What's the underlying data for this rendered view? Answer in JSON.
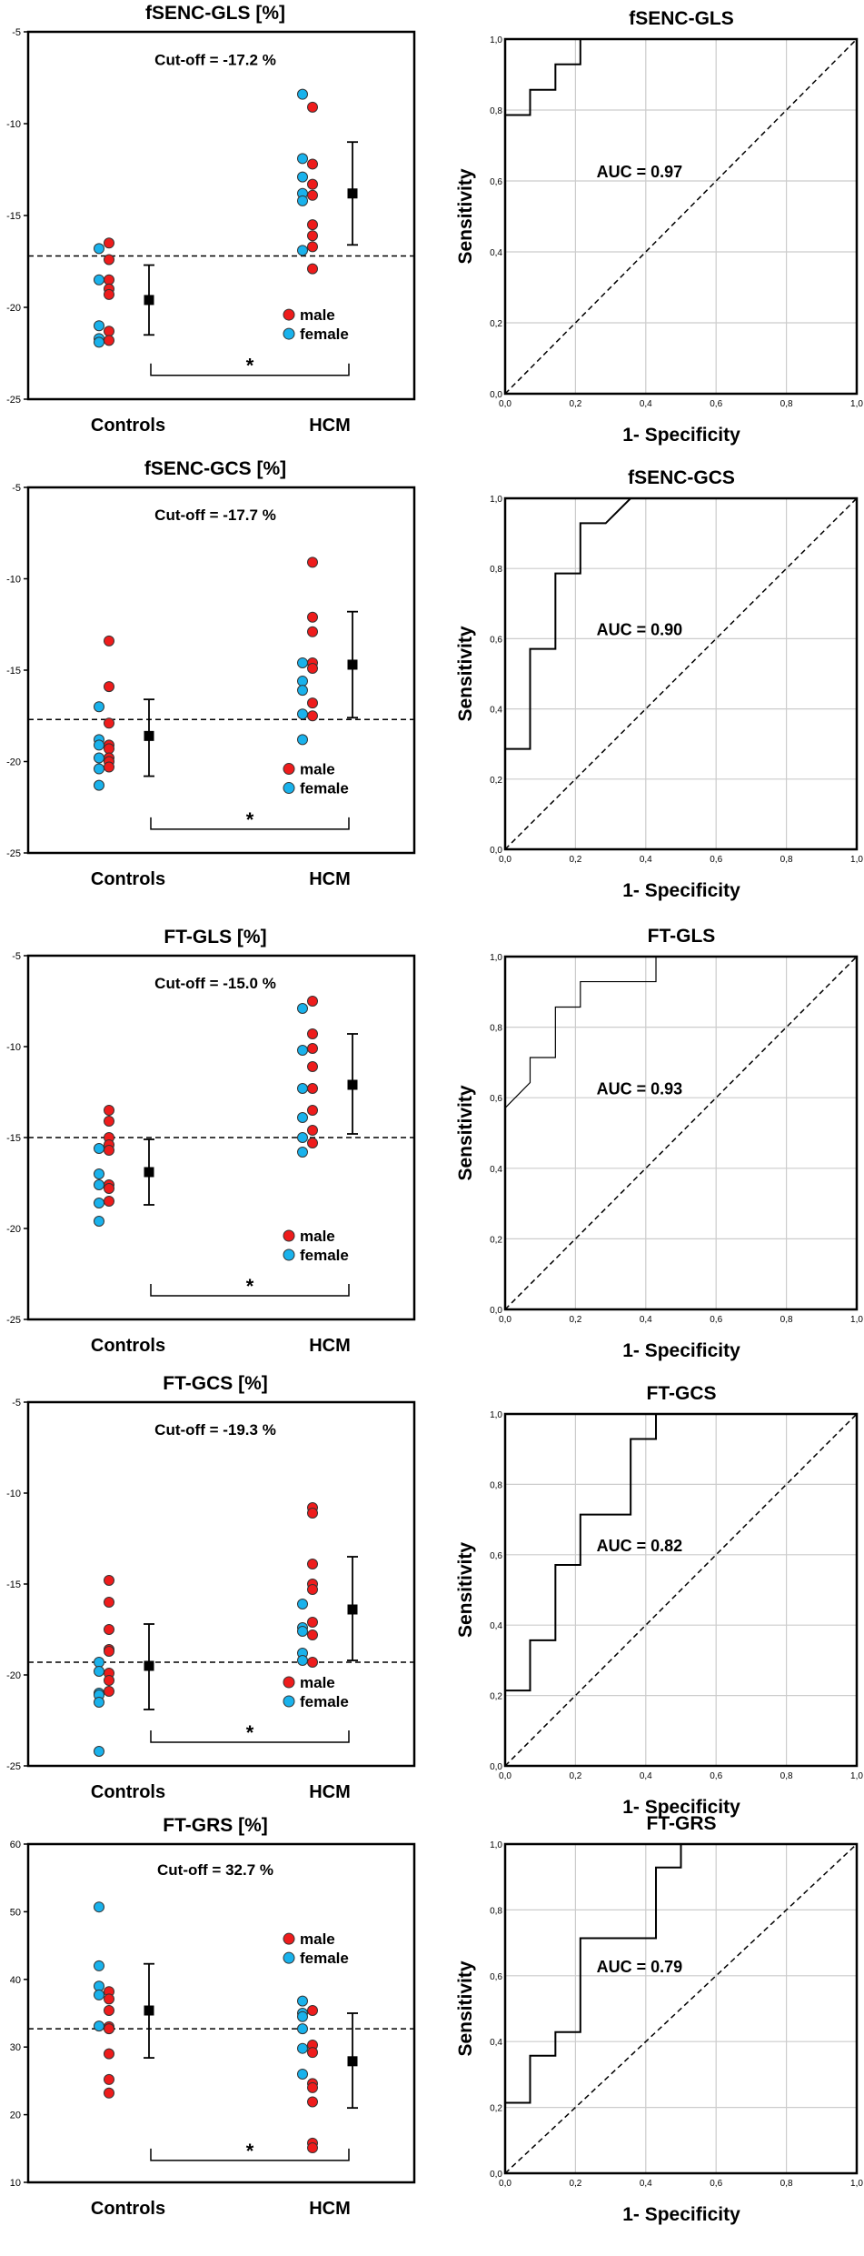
{
  "colors": {
    "male": "#ee1c1c",
    "female": "#19b2ec",
    "mean": "#000000",
    "grid": "#cccccc"
  },
  "chart_data": [
    {
      "type": "scatter",
      "title": "fSENC-GLS [%]",
      "cutoff_label": "Cut-off = -17.2 %",
      "cutoff": -17.2,
      "ylim": [
        -25,
        -5
      ],
      "yticks": [
        "-5",
        "-10",
        "-15",
        "-20",
        "-25"
      ],
      "ytick_values": [
        -5,
        -10,
        -15,
        -20,
        -25
      ],
      "categories": [
        "Controls",
        "HCM"
      ],
      "legend": {
        "items": [
          "male",
          "female"
        ],
        "placement": "lower-right"
      },
      "significance": "*",
      "series": [
        {
          "group": "Controls",
          "sex": "female",
          "values": [
            -16.8,
            -18.5,
            -21.0,
            -21.7,
            -21.9
          ]
        },
        {
          "group": "Controls",
          "sex": "male",
          "values": [
            -16.5,
            -17.4,
            -18.5,
            -19.0,
            -19.3,
            -21.3,
            -21.8
          ]
        },
        {
          "group": "HCM",
          "sex": "female",
          "values": [
            -8.4,
            -11.9,
            -12.9,
            -13.8,
            -14.2,
            -16.9
          ]
        },
        {
          "group": "HCM",
          "sex": "male",
          "values": [
            -9.1,
            -12.2,
            -13.3,
            -13.9,
            -15.5,
            -16.1,
            -16.7,
            -17.9
          ]
        }
      ],
      "mean_sd": [
        {
          "group": "Controls",
          "mean": -19.6,
          "upper": -17.7,
          "lower": -21.5
        },
        {
          "group": "HCM",
          "mean": -13.8,
          "upper": -11.0,
          "lower": -16.6
        }
      ]
    },
    {
      "type": "line",
      "title": "fSENC-GLS",
      "xlabel": "1- Specificity",
      "ylabel": "Sensitivity",
      "auc_label": "AUC = 0.97",
      "xlim": [
        0,
        1
      ],
      "ylim": [
        0,
        1
      ],
      "ticks": [
        "0,0",
        "0,2",
        "0,4",
        "0,6",
        "0,8",
        "1,0"
      ],
      "grid": true,
      "roc": [
        [
          0,
          0
        ],
        [
          0,
          0.786
        ],
        [
          0.071,
          0.786
        ],
        [
          0.071,
          0.857
        ],
        [
          0.143,
          0.857
        ],
        [
          0.143,
          0.929
        ],
        [
          0.214,
          0.929
        ],
        [
          0.214,
          1
        ],
        [
          1,
          1
        ]
      ],
      "reference": [
        [
          0,
          0
        ],
        [
          1,
          1
        ]
      ]
    },
    {
      "type": "scatter",
      "title": "fSENC-GCS [%]",
      "cutoff_label": "Cut-off = -17.7 %",
      "cutoff": -17.7,
      "ylim": [
        -25,
        -5
      ],
      "yticks": [
        "-5",
        "-10",
        "-15",
        "-20",
        "-25"
      ],
      "ytick_values": [
        -5,
        -10,
        -15,
        -20,
        -25
      ],
      "categories": [
        "Controls",
        "HCM"
      ],
      "legend": {
        "items": [
          "male",
          "female"
        ],
        "placement": "lower-right"
      },
      "significance": "*",
      "series": [
        {
          "group": "Controls",
          "sex": "female",
          "values": [
            -17.0,
            -18.8,
            -19.1,
            -19.8,
            -20.4,
            -21.3
          ]
        },
        {
          "group": "Controls",
          "sex": "male",
          "values": [
            -13.4,
            -15.9,
            -17.9,
            -19.1,
            -19.3,
            -19.8,
            -20.0,
            -20.3
          ]
        },
        {
          "group": "HCM",
          "sex": "female",
          "values": [
            -14.6,
            -15.6,
            -16.1,
            -17.4,
            -18.8
          ]
        },
        {
          "group": "HCM",
          "sex": "male",
          "values": [
            -9.1,
            -12.1,
            -12.9,
            -14.6,
            -14.9,
            -16.8,
            -17.5
          ]
        }
      ],
      "mean_sd": [
        {
          "group": "Controls",
          "mean": -18.6,
          "upper": -16.6,
          "lower": -20.8
        },
        {
          "group": "HCM",
          "mean": -14.7,
          "upper": -11.8,
          "lower": -17.6
        }
      ]
    },
    {
      "type": "line",
      "title": "fSENC-GCS",
      "xlabel": "1- Specificity",
      "ylabel": "Sensitivity",
      "auc_label": "AUC = 0.90",
      "xlim": [
        0,
        1
      ],
      "ylim": [
        0,
        1
      ],
      "ticks": [
        "0,0",
        "0,2",
        "0,4",
        "0,6",
        "0,8",
        "1,0"
      ],
      "grid": true,
      "roc": [
        [
          0,
          0
        ],
        [
          0,
          0.286
        ],
        [
          0.071,
          0.286
        ],
        [
          0.071,
          0.571
        ],
        [
          0.143,
          0.571
        ],
        [
          0.143,
          0.786
        ],
        [
          0.214,
          0.786
        ],
        [
          0.214,
          0.929
        ],
        [
          0.286,
          0.929
        ],
        [
          0.357,
          1
        ],
        [
          1,
          1
        ]
      ],
      "reference": [
        [
          0,
          0
        ],
        [
          1,
          1
        ]
      ]
    },
    {
      "type": "scatter",
      "title": "FT-GLS [%]",
      "cutoff_label": "Cut-off = -15.0 %",
      "cutoff": -15.0,
      "ylim": [
        -25,
        -5
      ],
      "yticks": [
        "-5",
        "-10",
        "-15",
        "-20",
        "-25"
      ],
      "ytick_values": [
        -5,
        -10,
        -15,
        -20,
        -25
      ],
      "categories": [
        "Controls",
        "HCM"
      ],
      "legend": {
        "items": [
          "male",
          "female"
        ],
        "placement": "lower-right"
      },
      "significance": "*",
      "series": [
        {
          "group": "Controls",
          "sex": "female",
          "values": [
            -15.6,
            -17.0,
            -17.6,
            -18.6,
            -19.6
          ]
        },
        {
          "group": "Controls",
          "sex": "male",
          "values": [
            -13.5,
            -14.1,
            -15.0,
            -15.4,
            -15.7,
            -17.6,
            -17.8,
            -18.5
          ]
        },
        {
          "group": "HCM",
          "sex": "female",
          "values": [
            -7.9,
            -10.2,
            -12.3,
            -13.9,
            -15.0,
            -15.8
          ]
        },
        {
          "group": "HCM",
          "sex": "male",
          "values": [
            -7.5,
            -9.3,
            -10.1,
            -11.1,
            -12.3,
            -13.5,
            -14.6,
            -15.3
          ]
        }
      ],
      "mean_sd": [
        {
          "group": "Controls",
          "mean": -16.9,
          "upper": -15.1,
          "lower": -18.7
        },
        {
          "group": "HCM",
          "mean": -12.1,
          "upper": -9.3,
          "lower": -14.8
        }
      ]
    },
    {
      "type": "line",
      "title": "FT-GLS",
      "xlabel": "1- Specificity",
      "ylabel": "Sensitivity",
      "auc_label": "AUC = 0.93",
      "xlim": [
        0,
        1
      ],
      "ylim": [
        0,
        1
      ],
      "ticks": [
        "0,0",
        "0,2",
        "0,4",
        "0,6",
        "0,8",
        "1,0"
      ],
      "grid": true,
      "roc": [
        [
          0,
          0.571
        ],
        [
          0.071,
          0.643
        ],
        [
          0.071,
          0.714
        ],
        [
          0.143,
          0.714
        ],
        [
          0.143,
          0.857
        ],
        [
          0.214,
          0.857
        ],
        [
          0.214,
          0.929
        ],
        [
          0.429,
          0.929
        ],
        [
          0.429,
          1
        ],
        [
          1,
          1
        ]
      ],
      "reference": [
        [
          0,
          0
        ],
        [
          1,
          1
        ]
      ]
    },
    {
      "type": "scatter",
      "title": "FT-GCS [%]",
      "cutoff_label": "Cut-off = -19.3 %",
      "cutoff": -19.3,
      "ylim": [
        -25,
        -5
      ],
      "yticks": [
        "-5",
        "-10",
        "-15",
        "-20",
        "-25"
      ],
      "ytick_values": [
        -5,
        -10,
        -15,
        -20,
        -25
      ],
      "categories": [
        "Controls",
        "HCM"
      ],
      "legend": {
        "items": [
          "male",
          "female"
        ],
        "placement": "lower-right"
      },
      "significance": "*",
      "series": [
        {
          "group": "Controls",
          "sex": "female",
          "values": [
            -19.3,
            -19.8,
            -21.0,
            -21.1,
            -21.5,
            -24.2
          ]
        },
        {
          "group": "Controls",
          "sex": "male",
          "values": [
            -14.8,
            -16.0,
            -17.5,
            -18.6,
            -18.7,
            -19.9,
            -20.3,
            -20.9
          ]
        },
        {
          "group": "HCM",
          "sex": "female",
          "values": [
            -16.1,
            -17.4,
            -17.6,
            -18.8,
            -19.2
          ]
        },
        {
          "group": "HCM",
          "sex": "male",
          "values": [
            -10.8,
            -11.1,
            -13.9,
            -15.0,
            -15.3,
            -17.1,
            -17.8,
            -19.3
          ]
        }
      ],
      "mean_sd": [
        {
          "group": "Controls",
          "mean": -19.5,
          "upper": -17.2,
          "lower": -21.9
        },
        {
          "group": "HCM",
          "mean": -16.4,
          "upper": -13.5,
          "lower": -19.2
        }
      ]
    },
    {
      "type": "line",
      "title": "FT-GCS",
      "xlabel": "1- Specificity",
      "ylabel": "Sensitivity",
      "auc_label": "AUC = 0.82",
      "xlim": [
        0,
        1
      ],
      "ylim": [
        0,
        1
      ],
      "ticks": [
        "0,0",
        "0,2",
        "0,4",
        "0,6",
        "0,8",
        "1,0"
      ],
      "grid": true,
      "roc": [
        [
          0,
          0
        ],
        [
          0,
          0.214
        ],
        [
          0.071,
          0.214
        ],
        [
          0.071,
          0.357
        ],
        [
          0.143,
          0.357
        ],
        [
          0.143,
          0.571
        ],
        [
          0.214,
          0.571
        ],
        [
          0.214,
          0.714
        ],
        [
          0.357,
          0.714
        ],
        [
          0.357,
          0.929
        ],
        [
          0.429,
          0.929
        ],
        [
          0.429,
          1
        ],
        [
          1,
          1
        ]
      ],
      "reference": [
        [
          0,
          0
        ],
        [
          1,
          1
        ]
      ]
    },
    {
      "type": "scatter",
      "title": "FT-GRS [%]",
      "cutoff_label": "Cut-off = 32.7 %",
      "cutoff": 32.7,
      "ylim": [
        10,
        60
      ],
      "yticks": [
        "60",
        "50",
        "40",
        "30",
        "20",
        "10"
      ],
      "ytick_values": [
        60,
        50,
        40,
        30,
        20,
        10
      ],
      "categories": [
        "Controls",
        "HCM"
      ],
      "legend": {
        "items": [
          "male",
          "female"
        ],
        "placement": "upper-right"
      },
      "significance": "*",
      "series": [
        {
          "group": "Controls",
          "sex": "female",
          "values": [
            50.7,
            42.0,
            39.0,
            37.7,
            33.1
          ]
        },
        {
          "group": "Controls",
          "sex": "male",
          "values": [
            38.2,
            37.1,
            35.4,
            33.0,
            32.7,
            29.0,
            25.2,
            23.2
          ]
        },
        {
          "group": "HCM",
          "sex": "female",
          "values": [
            36.8,
            35.0,
            34.5,
            32.7,
            29.8,
            26.0
          ]
        },
        {
          "group": "HCM",
          "sex": "male",
          "values": [
            35.4,
            30.3,
            29.2,
            24.6,
            24.0,
            21.9,
            15.8,
            15.1
          ]
        }
      ],
      "mean_sd": [
        {
          "group": "Controls",
          "mean": 35.4,
          "upper": 42.3,
          "lower": 28.4
        },
        {
          "group": "HCM",
          "mean": 27.9,
          "upper": 35.0,
          "lower": 21.0
        }
      ]
    },
    {
      "type": "line",
      "title": "FT-GRS",
      "xlabel": "1- Specificity",
      "ylabel": "Sensitivity",
      "auc_label": "AUC = 0.79",
      "xlim": [
        0,
        1
      ],
      "ylim": [
        0,
        1
      ],
      "ticks": [
        "0,0",
        "0,2",
        "0,4",
        "0,6",
        "0,8",
        "1,0"
      ],
      "grid": true,
      "roc": [
        [
          0,
          0
        ],
        [
          0,
          0.214
        ],
        [
          0.071,
          0.214
        ],
        [
          0.071,
          0.357
        ],
        [
          0.143,
          0.357
        ],
        [
          0.143,
          0.429
        ],
        [
          0.214,
          0.429
        ],
        [
          0.214,
          0.714
        ],
        [
          0.429,
          0.714
        ],
        [
          0.429,
          0.929
        ],
        [
          0.5,
          0.929
        ],
        [
          0.5,
          1
        ],
        [
          1,
          1
        ]
      ],
      "reference": [
        [
          0,
          0
        ],
        [
          1,
          1
        ]
      ]
    }
  ]
}
